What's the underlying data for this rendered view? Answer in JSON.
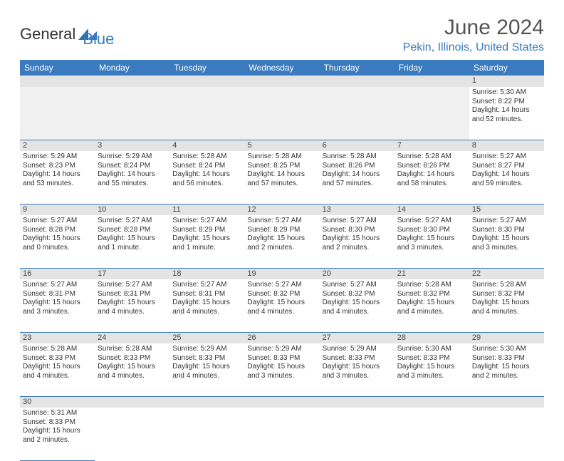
{
  "logo": {
    "text1": "General",
    "text2": "Blue"
  },
  "title": "June 2024",
  "location": "Pekin, Illinois, United States",
  "colors": {
    "header_bg": "#3a7bbf",
    "header_fg": "#ffffff",
    "daynum_bg": "#e4e4e4",
    "firstrow_bg": "#f0f0f0",
    "cell_border": "#3a7bbf",
    "title_color": "#555555",
    "location_color": "#3a7bbf"
  },
  "weekdays": [
    "Sunday",
    "Monday",
    "Tuesday",
    "Wednesday",
    "Thursday",
    "Friday",
    "Saturday"
  ],
  "weeks": [
    [
      null,
      null,
      null,
      null,
      null,
      null,
      {
        "d": "1",
        "sr": "Sunrise: 5:30 AM",
        "ss": "Sunset: 8:22 PM",
        "dl": "Daylight: 14 hours and 52 minutes."
      }
    ],
    [
      {
        "d": "2",
        "sr": "Sunrise: 5:29 AM",
        "ss": "Sunset: 8:23 PM",
        "dl": "Daylight: 14 hours and 53 minutes."
      },
      {
        "d": "3",
        "sr": "Sunrise: 5:29 AM",
        "ss": "Sunset: 8:24 PM",
        "dl": "Daylight: 14 hours and 55 minutes."
      },
      {
        "d": "4",
        "sr": "Sunrise: 5:28 AM",
        "ss": "Sunset: 8:24 PM",
        "dl": "Daylight: 14 hours and 56 minutes."
      },
      {
        "d": "5",
        "sr": "Sunrise: 5:28 AM",
        "ss": "Sunset: 8:25 PM",
        "dl": "Daylight: 14 hours and 57 minutes."
      },
      {
        "d": "6",
        "sr": "Sunrise: 5:28 AM",
        "ss": "Sunset: 8:26 PM",
        "dl": "Daylight: 14 hours and 57 minutes."
      },
      {
        "d": "7",
        "sr": "Sunrise: 5:28 AM",
        "ss": "Sunset: 8:26 PM",
        "dl": "Daylight: 14 hours and 58 minutes."
      },
      {
        "d": "8",
        "sr": "Sunrise: 5:27 AM",
        "ss": "Sunset: 8:27 PM",
        "dl": "Daylight: 14 hours and 59 minutes."
      }
    ],
    [
      {
        "d": "9",
        "sr": "Sunrise: 5:27 AM",
        "ss": "Sunset: 8:28 PM",
        "dl": "Daylight: 15 hours and 0 minutes."
      },
      {
        "d": "10",
        "sr": "Sunrise: 5:27 AM",
        "ss": "Sunset: 8:28 PM",
        "dl": "Daylight: 15 hours and 1 minute."
      },
      {
        "d": "11",
        "sr": "Sunrise: 5:27 AM",
        "ss": "Sunset: 8:29 PM",
        "dl": "Daylight: 15 hours and 1 minute."
      },
      {
        "d": "12",
        "sr": "Sunrise: 5:27 AM",
        "ss": "Sunset: 8:29 PM",
        "dl": "Daylight: 15 hours and 2 minutes."
      },
      {
        "d": "13",
        "sr": "Sunrise: 5:27 AM",
        "ss": "Sunset: 8:30 PM",
        "dl": "Daylight: 15 hours and 2 minutes."
      },
      {
        "d": "14",
        "sr": "Sunrise: 5:27 AM",
        "ss": "Sunset: 8:30 PM",
        "dl": "Daylight: 15 hours and 3 minutes."
      },
      {
        "d": "15",
        "sr": "Sunrise: 5:27 AM",
        "ss": "Sunset: 8:30 PM",
        "dl": "Daylight: 15 hours and 3 minutes."
      }
    ],
    [
      {
        "d": "16",
        "sr": "Sunrise: 5:27 AM",
        "ss": "Sunset: 8:31 PM",
        "dl": "Daylight: 15 hours and 3 minutes."
      },
      {
        "d": "17",
        "sr": "Sunrise: 5:27 AM",
        "ss": "Sunset: 8:31 PM",
        "dl": "Daylight: 15 hours and 4 minutes."
      },
      {
        "d": "18",
        "sr": "Sunrise: 5:27 AM",
        "ss": "Sunset: 8:31 PM",
        "dl": "Daylight: 15 hours and 4 minutes."
      },
      {
        "d": "19",
        "sr": "Sunrise: 5:27 AM",
        "ss": "Sunset: 8:32 PM",
        "dl": "Daylight: 15 hours and 4 minutes."
      },
      {
        "d": "20",
        "sr": "Sunrise: 5:27 AM",
        "ss": "Sunset: 8:32 PM",
        "dl": "Daylight: 15 hours and 4 minutes."
      },
      {
        "d": "21",
        "sr": "Sunrise: 5:28 AM",
        "ss": "Sunset: 8:32 PM",
        "dl": "Daylight: 15 hours and 4 minutes."
      },
      {
        "d": "22",
        "sr": "Sunrise: 5:28 AM",
        "ss": "Sunset: 8:32 PM",
        "dl": "Daylight: 15 hours and 4 minutes."
      }
    ],
    [
      {
        "d": "23",
        "sr": "Sunrise: 5:28 AM",
        "ss": "Sunset: 8:33 PM",
        "dl": "Daylight: 15 hours and 4 minutes."
      },
      {
        "d": "24",
        "sr": "Sunrise: 5:28 AM",
        "ss": "Sunset: 8:33 PM",
        "dl": "Daylight: 15 hours and 4 minutes."
      },
      {
        "d": "25",
        "sr": "Sunrise: 5:29 AM",
        "ss": "Sunset: 8:33 PM",
        "dl": "Daylight: 15 hours and 4 minutes."
      },
      {
        "d": "26",
        "sr": "Sunrise: 5:29 AM",
        "ss": "Sunset: 8:33 PM",
        "dl": "Daylight: 15 hours and 3 minutes."
      },
      {
        "d": "27",
        "sr": "Sunrise: 5:29 AM",
        "ss": "Sunset: 8:33 PM",
        "dl": "Daylight: 15 hours and 3 minutes."
      },
      {
        "d": "28",
        "sr": "Sunrise: 5:30 AM",
        "ss": "Sunset: 8:33 PM",
        "dl": "Daylight: 15 hours and 3 minutes."
      },
      {
        "d": "29",
        "sr": "Sunrise: 5:30 AM",
        "ss": "Sunset: 8:33 PM",
        "dl": "Daylight: 15 hours and 2 minutes."
      }
    ],
    [
      {
        "d": "30",
        "sr": "Sunrise: 5:31 AM",
        "ss": "Sunset: 8:33 PM",
        "dl": "Daylight: 15 hours and 2 minutes."
      },
      null,
      null,
      null,
      null,
      null,
      null
    ]
  ]
}
